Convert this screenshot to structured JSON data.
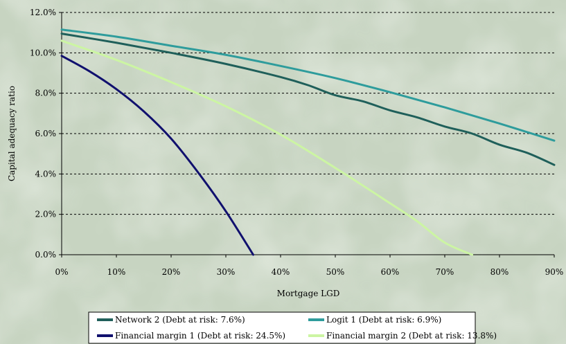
{
  "chart_data": {
    "type": "line",
    "xlabel": "Mortgage LGD",
    "ylabel": "Capital adequacy ratio",
    "xlim": [
      0,
      90
    ],
    "ylim": [
      0,
      12
    ],
    "x_ticks": [
      "0%",
      "10%",
      "20%",
      "30%",
      "40%",
      "50%",
      "60%",
      "70%",
      "80%",
      "90%"
    ],
    "y_ticks": [
      "0.0%",
      "2.0%",
      "4.0%",
      "6.0%",
      "8.0%",
      "10.0%",
      "12.0%"
    ],
    "grid": "horizontal dashed",
    "legend_position": "bottom",
    "series": [
      {
        "name": "Network 2 (Debt at risk: 7.6%)",
        "color": "#1f5f5a",
        "points": [
          [
            0,
            10.95
          ],
          [
            10,
            10.5
          ],
          [
            20,
            10.0
          ],
          [
            30,
            9.45
          ],
          [
            40,
            8.8
          ],
          [
            45,
            8.4
          ],
          [
            50,
            7.9
          ],
          [
            55,
            7.6
          ],
          [
            60,
            7.15
          ],
          [
            65,
            6.8
          ],
          [
            70,
            6.35
          ],
          [
            75,
            6.0
          ],
          [
            80,
            5.45
          ],
          [
            85,
            5.05
          ],
          [
            90,
            4.45
          ]
        ]
      },
      {
        "name": "Logit 1 (Debt at risk: 6.9%)",
        "color": "#2e9c9c",
        "points": [
          [
            0,
            11.15
          ],
          [
            10,
            10.8
          ],
          [
            20,
            10.35
          ],
          [
            30,
            9.9
          ],
          [
            40,
            9.35
          ],
          [
            50,
            8.75
          ],
          [
            60,
            8.05
          ],
          [
            70,
            7.3
          ],
          [
            80,
            6.5
          ],
          [
            90,
            5.65
          ]
        ]
      },
      {
        "name": "Financial margin 1 (Debt at risk: 24.5%)",
        "color": "#10106e",
        "points": [
          [
            0,
            9.85
          ],
          [
            5,
            9.1
          ],
          [
            10,
            8.2
          ],
          [
            15,
            7.1
          ],
          [
            20,
            5.75
          ],
          [
            25,
            4.05
          ],
          [
            30,
            2.15
          ],
          [
            35,
            0.0
          ]
        ]
      },
      {
        "name": "Financial margin 2 (Debt at risk: 13.8%)",
        "color": "#ccf5a3",
        "points": [
          [
            0,
            10.6
          ],
          [
            10,
            9.65
          ],
          [
            20,
            8.55
          ],
          [
            30,
            7.35
          ],
          [
            40,
            5.95
          ],
          [
            50,
            4.3
          ],
          [
            60,
            2.55
          ],
          [
            65,
            1.65
          ],
          [
            70,
            0.6
          ],
          [
            75,
            0.0
          ]
        ]
      }
    ]
  }
}
